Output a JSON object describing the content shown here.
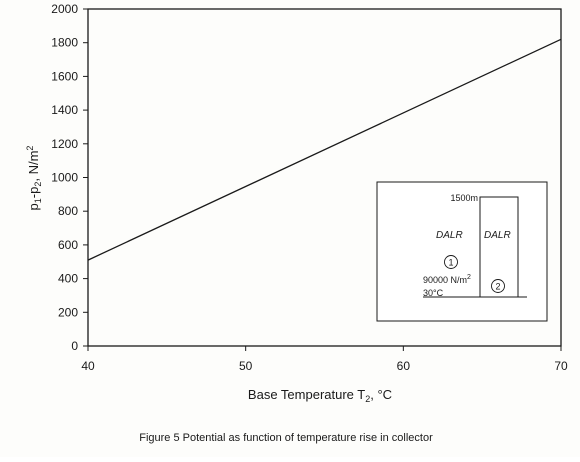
{
  "chart_data": {
    "type": "line",
    "xlabel": "Base Temperature T",
    "xlabel_sub": "2",
    "xlabel_unit": ", °C",
    "ylabel": "p",
    "ylabel_sub1": "1",
    "ylabel_mid": "-p",
    "ylabel_sub2": "2",
    "ylabel_unit": ", N/m",
    "ylabel_sup": "2",
    "xlim": [
      40,
      70
    ],
    "ylim": [
      0,
      2000
    ],
    "xticks": [
      "40",
      "50",
      "60",
      "70"
    ],
    "yticks": [
      "0",
      "200",
      "400",
      "600",
      "800",
      "1000",
      "1200",
      "1400",
      "1600",
      "1800",
      "2000"
    ],
    "grid": false,
    "series": [
      {
        "x": [
          40,
          70
        ],
        "y": [
          510,
          1820
        ]
      }
    ]
  },
  "caption": "Figure 5  Potential as function of temperature rise in collector",
  "inset": {
    "height_label": "1500m",
    "left_lapse": "DALR",
    "right_lapse": "DALR",
    "marker_1": "1",
    "marker_2": "2",
    "pressure_label": "90000 N/m",
    "pressure_sup": "2",
    "temperature_label": "30°C"
  }
}
